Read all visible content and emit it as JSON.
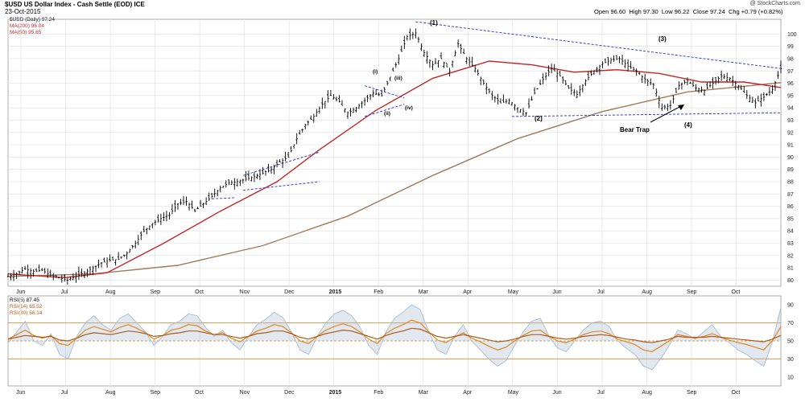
{
  "header": {
    "symbol_title": "$USD US Dollar Index - Cash Settle (EOD) ICE",
    "date": "23-Oct-2015",
    "source": "@ StockCharts.com",
    "open_label": "Open",
    "open": "96.60",
    "high_label": "High",
    "high": "97.30",
    "low_label": "Low",
    "low": "96.22",
    "close_label": "Close",
    "close": "97.24",
    "chg_label": "Chg",
    "chg": "+0.79 (+0.82%)"
  },
  "legend": {
    "price": "$USD (Daily) 97.24",
    "ma200": "MA(200) 96.04",
    "ma50": "MA(50) 95.65",
    "rsi5": "RSI(5) 87.45",
    "rsi14": "RSI(14) 65.52",
    "rsi30": "RSI(30) 56.14"
  },
  "annotations": {
    "w1": "(1)",
    "w2": "(2)",
    "w3": "(3)",
    "w4": "(4)",
    "wi": "(i)",
    "wii": "(ii)",
    "wiii": "(iii)",
    "wiv": "(iv)",
    "bear_trap": "Bear Trap"
  },
  "colors": {
    "price_bars": "#000000",
    "ma50": "#c0282a",
    "ma200": "#a07a5a",
    "trendlines": "#2a2ad6",
    "rsi5": "#a9bcd0",
    "rsi14": "#e0881e",
    "rsi30": "#b25a18",
    "rsi_hline": "#d79a4c",
    "grid": "#e2e2e2"
  },
  "chart_data": [
    {
      "type": "line",
      "name": "price",
      "months": [
        "Jun",
        "Jul",
        "Aug",
        "Sep",
        "Oct",
        "Nov",
        "Dec",
        "2015",
        "Feb",
        "Mar",
        "Apr",
        "May",
        "Jun",
        "Jul",
        "Aug",
        "Sep",
        "Oct"
      ],
      "y_ticks": [
        80,
        81,
        82,
        83,
        84,
        85,
        86,
        87,
        88,
        89,
        90,
        91,
        92,
        93,
        94,
        95,
        96,
        97,
        98,
        99,
        100
      ],
      "ylim": [
        79.5,
        101.2
      ],
      "grid": true,
      "series": [
        {
          "name": "$USD (Daily) 97.24",
          "style": "ohlc",
          "points": [
            [
              0,
              80.3
            ],
            [
              3,
              80.5
            ],
            [
              6,
              80.9
            ],
            [
              9,
              80.7
            ],
            [
              12,
              80.8
            ],
            [
              15,
              80.4
            ],
            [
              18,
              80.2
            ],
            [
              21,
              80.0
            ],
            [
              24,
              80.3
            ],
            [
              27,
              80.6
            ],
            [
              30,
              81.0
            ],
            [
              33,
              81.4
            ],
            [
              36,
              81.6
            ],
            [
              39,
              81.7
            ],
            [
              42,
              82.2
            ],
            [
              45,
              83.0
            ],
            [
              48,
              84.0
            ],
            [
              51,
              84.6
            ],
            [
              54,
              85.0
            ],
            [
              57,
              85.3
            ],
            [
              60,
              86.2
            ],
            [
              63,
              86.4
            ],
            [
              66,
              85.6
            ],
            [
              69,
              86.2
            ],
            [
              72,
              86.8
            ],
            [
              75,
              87.5
            ],
            [
              78,
              87.9
            ],
            [
              81,
              88.0
            ],
            [
              84,
              88.2
            ],
            [
              87,
              88.4
            ],
            [
              90,
              88.7
            ],
            [
              93,
              89.0
            ],
            [
              96,
              89.6
            ],
            [
              99,
              90.0
            ],
            [
              102,
              91.5
            ],
            [
              105,
              92.6
            ],
            [
              108,
              93.3
            ],
            [
              111,
              94.3
            ],
            [
              114,
              95.0
            ],
            [
              117,
              94.5
            ],
            [
              120,
              93.6
            ],
            [
              123,
              94.0
            ],
            [
              126,
              94.6
            ],
            [
              129,
              95.2
            ],
            [
              132,
              95.0
            ],
            [
              135,
              96.5
            ],
            [
              138,
              98.0
            ],
            [
              141,
              99.8
            ],
            [
              144,
              100.1
            ],
            [
              147,
              98.5
            ],
            [
              150,
              97.5
            ],
            [
              153,
              98.0
            ],
            [
              156,
              97.0
            ],
            [
              159,
              99.2
            ],
            [
              162,
              98.0
            ],
            [
              165,
              97.2
            ],
            [
              168,
              96.0
            ],
            [
              171,
              95.0
            ],
            [
              174,
              94.4
            ],
            [
              177,
              94.6
            ],
            [
              180,
              94.0
            ],
            [
              183,
              93.6
            ],
            [
              186,
              95.2
            ],
            [
              189,
              96.3
            ],
            [
              192,
              97.2
            ],
            [
              195,
              96.6
            ],
            [
              198,
              95.6
            ],
            [
              201,
              95.1
            ],
            [
              204,
              96.2
            ],
            [
              207,
              97.0
            ],
            [
              210,
              97.6
            ],
            [
              213,
              97.9
            ],
            [
              216,
              98.0
            ],
            [
              219,
              97.4
            ],
            [
              222,
              97.0
            ],
            [
              225,
              96.3
            ],
            [
              228,
              95.9
            ],
            [
              231,
              94.0
            ],
            [
              234,
              94.2
            ],
            [
              237,
              95.8
            ],
            [
              240,
              96.2
            ],
            [
              243,
              95.6
            ],
            [
              246,
              95.4
            ],
            [
              249,
              96.0
            ],
            [
              252,
              96.6
            ],
            [
              255,
              96.4
            ],
            [
              258,
              95.8
            ],
            [
              261,
              95.0
            ],
            [
              264,
              94.4
            ],
            [
              267,
              94.9
            ],
            [
              270,
              95.5
            ],
            [
              273,
              97.2
            ]
          ]
        },
        {
          "name": "MA(200) 96.04",
          "style": "line",
          "points": [
            [
              0,
              80.3
            ],
            [
              30,
              80.5
            ],
            [
              60,
              81.2
            ],
            [
              90,
              82.8
            ],
            [
              120,
              85.2
            ],
            [
              150,
              88.5
            ],
            [
              180,
              91.5
            ],
            [
              210,
              93.7
            ],
            [
              240,
              95.3
            ],
            [
              273,
              96.05
            ]
          ]
        },
        {
          "name": "MA(50) 95.65",
          "style": "line",
          "points": [
            [
              0,
              80.5
            ],
            [
              20,
              80.2
            ],
            [
              35,
              80.6
            ],
            [
              55,
              83.0
            ],
            [
              75,
              85.6
            ],
            [
              95,
              88.0
            ],
            [
              110,
              90.6
            ],
            [
              130,
              93.8
            ],
            [
              150,
              96.4
            ],
            [
              170,
              97.8
            ],
            [
              185,
              97.5
            ],
            [
              200,
              96.9
            ],
            [
              215,
              97.1
            ],
            [
              230,
              96.8
            ],
            [
              245,
              96.1
            ],
            [
              260,
              96.1
            ],
            [
              273,
              95.65
            ]
          ]
        }
      ]
    },
    {
      "type": "line",
      "name": "rsi",
      "y_ticks": [
        10,
        30,
        50,
        70,
        90
      ],
      "ylim": [
        0,
        100
      ],
      "hlines": [
        30,
        50,
        70
      ],
      "series": [
        {
          "name": "RSI(5) 87.45",
          "values": [
            48,
            60,
            72,
            50,
            45,
            58,
            35,
            30,
            55,
            70,
            78,
            68,
            62,
            75,
            80,
            70,
            60,
            45,
            55,
            68,
            72,
            80,
            78,
            65,
            55,
            62,
            48,
            40,
            55,
            68,
            74,
            82,
            76,
            60,
            40,
            35,
            55,
            70,
            80,
            84,
            78,
            65,
            45,
            35,
            60,
            75,
            82,
            90,
            85,
            60,
            40,
            35,
            55,
            68,
            50,
            40,
            30,
            22,
            28,
            45,
            60,
            72,
            75,
            55,
            42,
            38,
            50,
            62,
            70,
            72,
            66,
            50,
            42,
            35,
            22,
            18,
            30,
            45,
            62,
            58,
            52,
            60,
            68,
            55,
            48,
            40,
            35,
            28,
            22,
            48,
            87
          ]
        },
        {
          "name": "RSI(14) 65.52",
          "values": [
            52,
            57,
            62,
            56,
            53,
            56,
            47,
            45,
            53,
            62,
            66,
            63,
            60,
            65,
            68,
            64,
            59,
            52,
            56,
            62,
            64,
            68,
            67,
            61,
            57,
            59,
            53,
            49,
            55,
            61,
            64,
            68,
            66,
            59,
            50,
            47,
            55,
            62,
            66,
            69,
            66,
            60,
            52,
            47,
            58,
            64,
            68,
            73,
            70,
            60,
            51,
            48,
            54,
            59,
            53,
            49,
            44,
            40,
            43,
            50,
            56,
            61,
            62,
            55,
            50,
            48,
            52,
            57,
            60,
            61,
            58,
            52,
            49,
            46,
            40,
            38,
            44,
            50,
            57,
            55,
            53,
            55,
            58,
            54,
            51,
            48,
            46,
            43,
            40,
            50,
            65.5
          ]
        },
        {
          "name": "RSI(30) 56.14",
          "values": [
            52,
            54,
            56,
            55,
            54,
            55,
            51,
            50,
            53,
            57,
            59,
            58,
            57,
            59,
            61,
            60,
            58,
            55,
            56,
            58,
            59,
            61,
            61,
            59,
            57,
            57,
            55,
            53,
            55,
            58,
            59,
            61,
            61,
            58,
            54,
            52,
            55,
            58,
            60,
            62,
            61,
            58,
            55,
            52,
            56,
            59,
            61,
            64,
            63,
            59,
            55,
            53,
            55,
            57,
            55,
            53,
            51,
            49,
            50,
            52,
            55,
            57,
            57,
            55,
            53,
            52,
            53,
            55,
            56,
            57,
            56,
            54,
            52,
            51,
            49,
            48,
            50,
            52,
            55,
            54,
            54,
            54,
            55,
            54,
            53,
            52,
            51,
            50,
            49,
            52,
            56.1
          ]
        }
      ]
    }
  ]
}
